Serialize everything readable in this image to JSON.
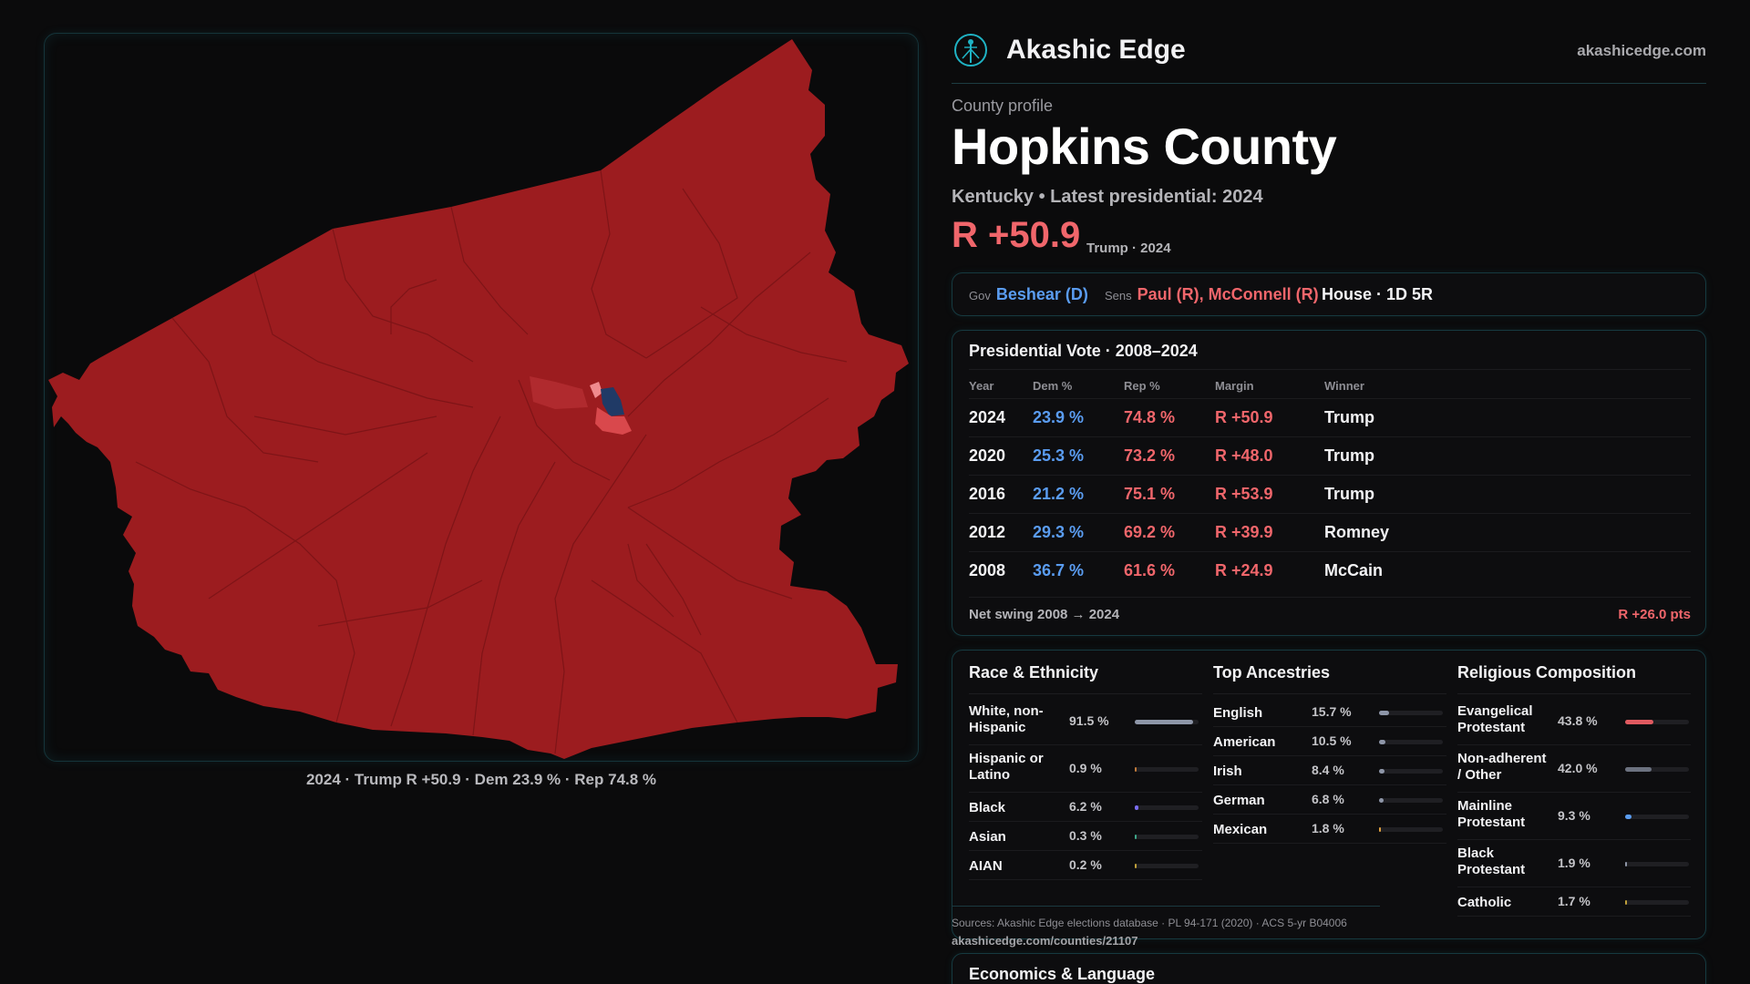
{
  "map": {
    "caption": "2024 · Trump R +50.9 · Dem 23.9 % · Rep 74.8 %",
    "colors": {
      "county_fill": "#9c1c1f",
      "dem_precinct": "#203a66",
      "lean_rep": "#d9484c",
      "light_rep": "#f08a8e",
      "boundary": "#7e1417"
    }
  },
  "brand": {
    "name": "Akashic Edge",
    "url": "akashicedge.com",
    "logo_icon": "tree-of-life-icon",
    "accent": "#1fb3c4"
  },
  "profile": {
    "kicker": "County profile",
    "county": "Hopkins County",
    "subtitle": "Kentucky • Latest presidential: 2024",
    "margin": "R +50.9",
    "margin_note": "Trump · 2024"
  },
  "officials": {
    "gov_label": "Gov",
    "gov": "Beshear (D)",
    "sens_label": "Sens",
    "sens": "Paul (R), McConnell (R)",
    "house": "House · 1D 5R"
  },
  "votes": {
    "title": "Presidential Vote · 2008–2024",
    "headers": [
      "Year",
      "Dem %",
      "Rep %",
      "Margin",
      "Winner"
    ],
    "rows": [
      {
        "year": "2024",
        "dem": "23.9 %",
        "rep": "74.8 %",
        "margin": "R +50.9",
        "winner": "Trump"
      },
      {
        "year": "2020",
        "dem": "25.3 %",
        "rep": "73.2 %",
        "margin": "R +48.0",
        "winner": "Trump"
      },
      {
        "year": "2016",
        "dem": "21.2 %",
        "rep": "75.1 %",
        "margin": "R +53.9",
        "winner": "Trump"
      },
      {
        "year": "2012",
        "dem": "29.3 %",
        "rep": "69.2 %",
        "margin": "R +39.9",
        "winner": "Romney"
      },
      {
        "year": "2008",
        "dem": "36.7 %",
        "rep": "61.6 %",
        "margin": "R +24.9",
        "winner": "McCain"
      }
    ],
    "swing_label": "Net swing 2008 → 2024",
    "swing_value": "R +26.0 pts"
  },
  "race": {
    "title": "Race & Ethnicity",
    "items": [
      {
        "label": "White, non-Hispanic",
        "pct": "91.5 %",
        "value": 91.5,
        "color": "#8e96a8"
      },
      {
        "label": "Hispanic or Latino",
        "pct": "0.9 %",
        "value": 0.9,
        "color": "#c07a3a"
      },
      {
        "label": "Black",
        "pct": "6.2 %",
        "value": 6.2,
        "color": "#7a6cf0"
      },
      {
        "label": "Asian",
        "pct": "0.3 %",
        "value": 0.3,
        "color": "#3fa88a"
      },
      {
        "label": "AIAN",
        "pct": "0.2 %",
        "value": 0.2,
        "color": "#c0a03a"
      }
    ]
  },
  "ancestry": {
    "title": "Top Ancestries",
    "items": [
      {
        "label": "English",
        "pct": "15.7 %",
        "value": 15.7,
        "color": "#8e96a8"
      },
      {
        "label": "American",
        "pct": "10.5 %",
        "value": 10.5,
        "color": "#8e96a8"
      },
      {
        "label": "Irish",
        "pct": "8.4 %",
        "value": 8.4,
        "color": "#8e96a8"
      },
      {
        "label": "German",
        "pct": "6.8 %",
        "value": 6.8,
        "color": "#8e96a8"
      },
      {
        "label": "Mexican",
        "pct": "1.8 %",
        "value": 1.8,
        "color": "#e0a040"
      }
    ]
  },
  "religion": {
    "title": "Religious Composition",
    "items": [
      {
        "label": "Evangelical Protestant",
        "pct": "43.8 %",
        "value": 43.8,
        "color": "#e05a60"
      },
      {
        "label": "Non-adherent / Other",
        "pct": "42.0 %",
        "value": 42.0,
        "color": "#6c7280"
      },
      {
        "label": "Mainline Protestant",
        "pct": "9.3 %",
        "value": 9.3,
        "color": "#5a9cf0"
      },
      {
        "label": "Black Protestant",
        "pct": "1.9 %",
        "value": 1.9,
        "color": "#8e96a8"
      },
      {
        "label": "Catholic",
        "pct": "1.7 %",
        "value": 1.7,
        "color": "#c0a03a"
      }
    ]
  },
  "sources": {
    "text": "Sources: Akashic Edge elections database · PL 94-171 (2020) · ACS 5-yr B04006",
    "url": "akashicedge.com/counties/21107"
  },
  "economics": {
    "title": "Economics & Language"
  }
}
